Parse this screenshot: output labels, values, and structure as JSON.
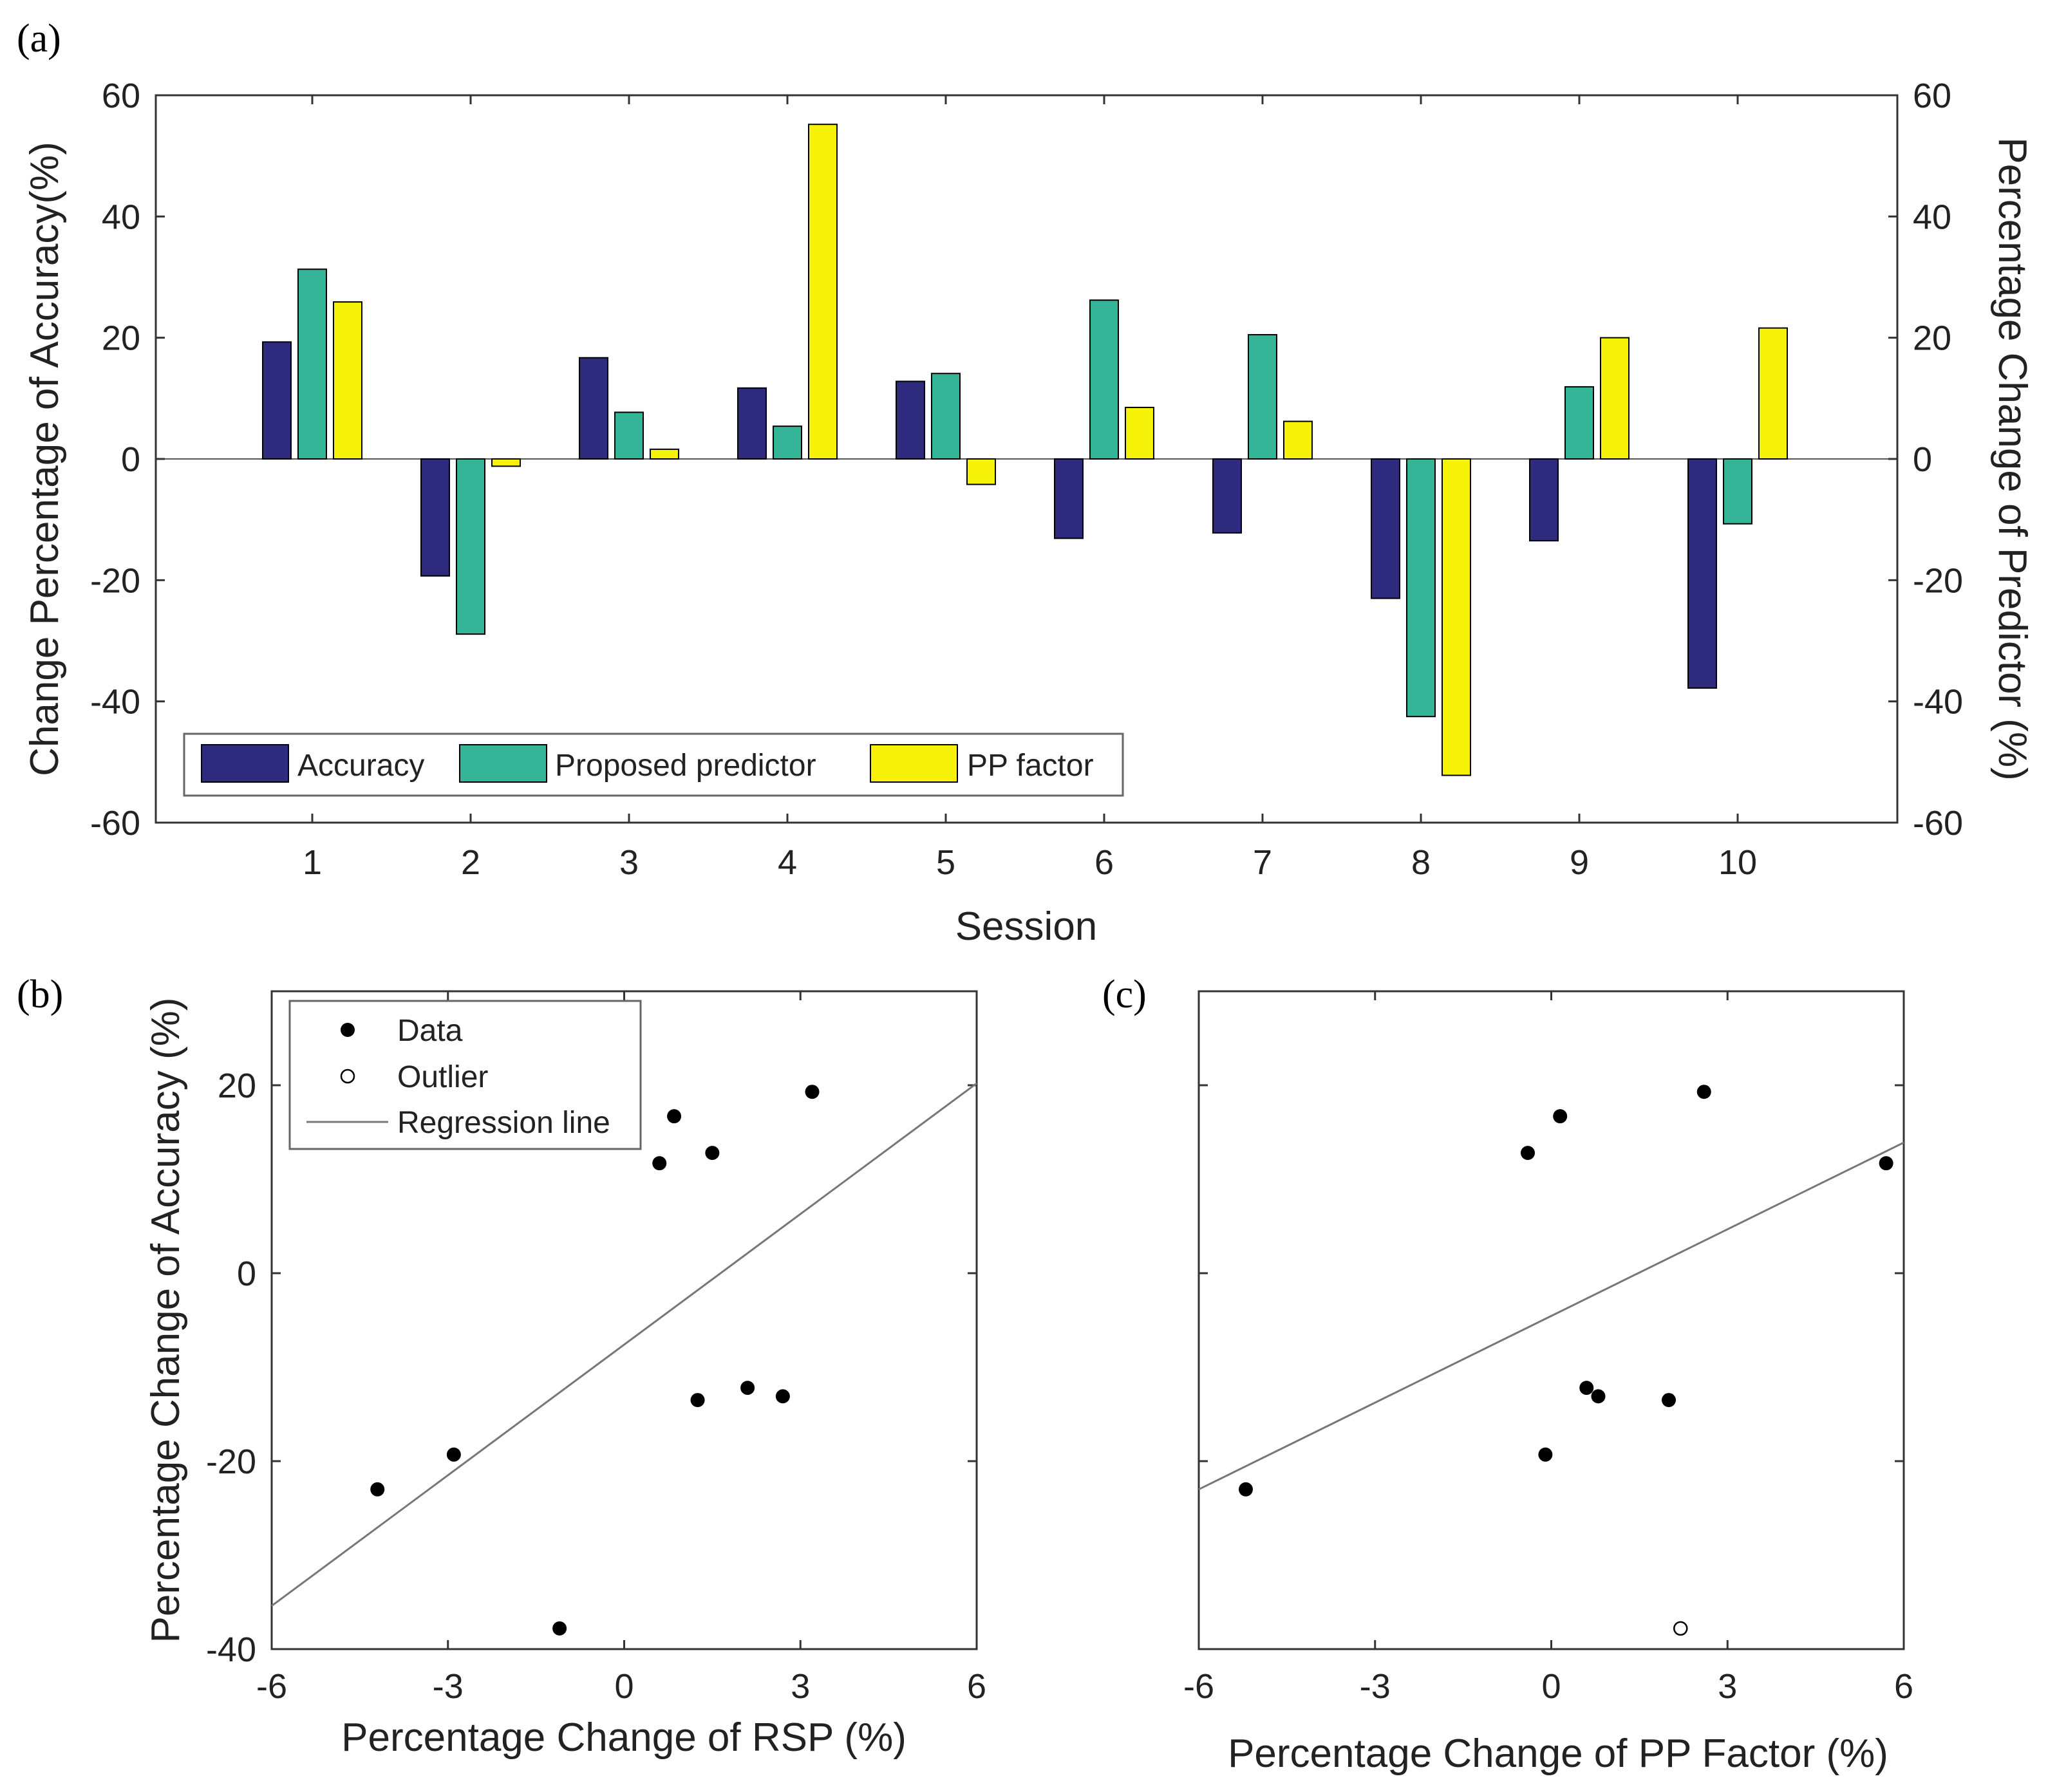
{
  "chart_data": [
    {
      "panel": "(a)",
      "type": "bar",
      "xlabel": "Session",
      "ylabel_left": "Change Percentage of Accuracy(%)",
      "ylabel_right": "Percentage Change of Predictor (%)",
      "ylim": [
        -60,
        60
      ],
      "yticks": [
        "60",
        "40",
        "20",
        "0",
        "-20",
        "-40",
        "-60"
      ],
      "yticks_right": [
        "60",
        "40",
        "20",
        "0",
        "-20",
        "-40",
        "-60"
      ],
      "categories": [
        "1",
        "2",
        "3",
        "4",
        "5",
        "6",
        "7",
        "8",
        "9",
        "10"
      ],
      "series": [
        {
          "name": "Accuracy",
          "color": "#2e2a7e",
          "values": [
            19.3,
            -19.3,
            16.7,
            11.7,
            12.8,
            -13.1,
            -12.2,
            -23.0,
            -13.5,
            -37.8
          ]
        },
        {
          "name": "Proposed predictor",
          "color": "#35b597",
          "values": [
            31.3,
            -28.9,
            7.7,
            5.4,
            14.1,
            26.2,
            20.5,
            -42.5,
            11.9,
            -10.7
          ]
        },
        {
          "name": "PP factor",
          "color": "#f7f20a",
          "values": [
            25.9,
            -1.2,
            1.6,
            55.2,
            -4.2,
            8.5,
            6.2,
            -52.2,
            20.0,
            21.6
          ]
        }
      ],
      "legend": [
        "Accuracy",
        "Proposed predictor",
        "PP factor"
      ]
    },
    {
      "panel": "(b)",
      "type": "scatter",
      "xlabel": "Percentage Change of RSP (%)",
      "ylabel": "Percentage Change of Accuracy (%)",
      "xlim": [
        -6,
        6
      ],
      "ylim": [
        -40,
        30
      ],
      "xticks": [
        "-6",
        "-3",
        "0",
        "3",
        "6"
      ],
      "yticks": [
        "20",
        "0",
        "-20",
        "-40"
      ],
      "data_points": [
        {
          "x": -4.2,
          "y": -23.0
        },
        {
          "x": -2.9,
          "y": -19.3
        },
        {
          "x": -1.1,
          "y": -37.8
        },
        {
          "x": 0.6,
          "y": 11.7
        },
        {
          "x": 0.85,
          "y": 16.7
        },
        {
          "x": 1.5,
          "y": 12.8
        },
        {
          "x": 3.2,
          "y": 19.3
        },
        {
          "x": 1.25,
          "y": -13.5
        },
        {
          "x": 2.1,
          "y": -12.2
        },
        {
          "x": 2.7,
          "y": -13.1
        }
      ],
      "outliers": [],
      "regression_line": [
        {
          "x": -6,
          "y": -35.4
        },
        {
          "x": 6,
          "y": 20.2
        }
      ],
      "legend": [
        "Data",
        "Outlier",
        "Regression line"
      ]
    },
    {
      "panel": "(c)",
      "type": "scatter",
      "xlabel": "Percentage Change of PP Factor (%)",
      "ylabel": "",
      "xlim": [
        -6,
        6
      ],
      "ylim": [
        -40,
        30
      ],
      "xticks": [
        "-6",
        "-3",
        "0",
        "3",
        "6"
      ],
      "yticks": [],
      "data_points": [
        {
          "x": -5.2,
          "y": -23.0
        },
        {
          "x": -0.4,
          "y": 12.8
        },
        {
          "x": 0.15,
          "y": 16.7
        },
        {
          "x": 2.6,
          "y": 19.3
        },
        {
          "x": 5.7,
          "y": 11.7
        },
        {
          "x": 0.6,
          "y": -12.2
        },
        {
          "x": 0.8,
          "y": -13.1
        },
        {
          "x": -0.1,
          "y": -19.3
        },
        {
          "x": 2.0,
          "y": -13.5
        }
      ],
      "outliers": [
        {
          "x": 2.2,
          "y": -37.8
        }
      ],
      "regression_line": [
        {
          "x": -6,
          "y": -23.0
        },
        {
          "x": 6,
          "y": 13.9
        }
      ]
    }
  ]
}
